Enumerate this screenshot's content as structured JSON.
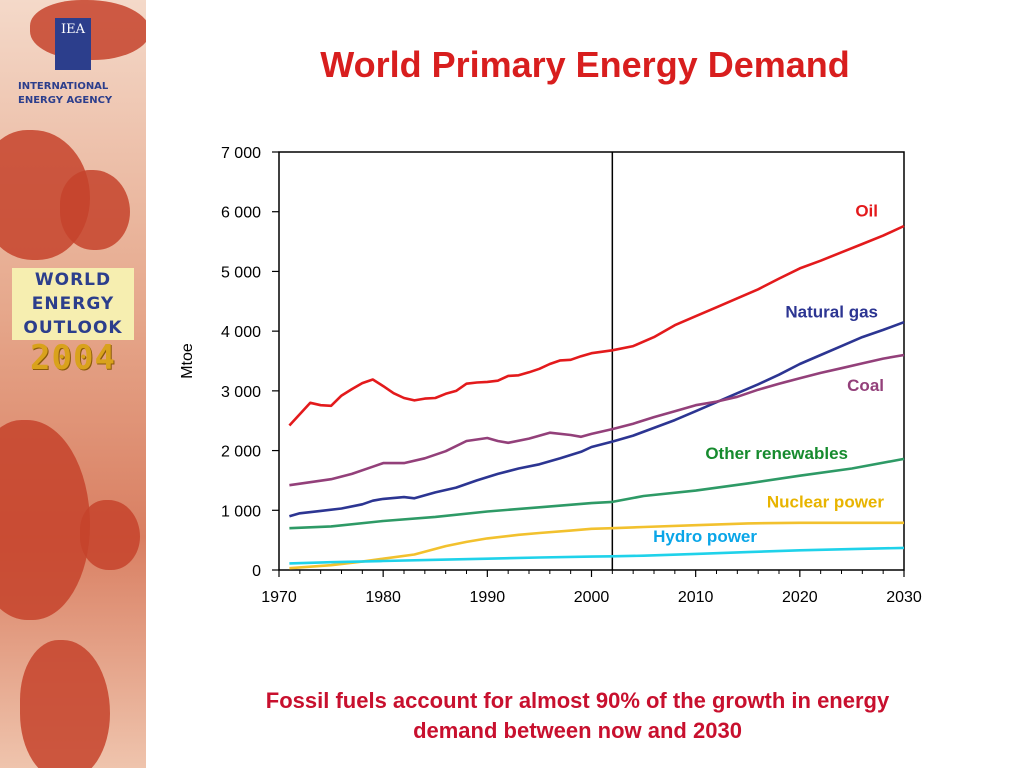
{
  "sidebar": {
    "logo_text": "IEA",
    "agency_line1": "INTERNATIONAL",
    "agency_line2": "ENERGY AGENCY",
    "badge": {
      "line1": "WORLD",
      "line2": "ENERGY",
      "line3": "OUTLOOK",
      "line4": "2004"
    }
  },
  "slide": {
    "title": "World Primary Energy Demand",
    "footnote_line1": "Fossil fuels account for almost 90% of the growth in energy",
    "footnote_line2": "demand between now and 2030"
  },
  "colors": {
    "title": "#d81e1e",
    "footnote": "#c8102e",
    "oil": "#e31a1c",
    "natural_gas": "#2c3592",
    "coal": "#93407a",
    "other_renewables": "#2e9a66",
    "nuclear": "#f2c12e",
    "hydro": "#1fd2ea",
    "label_other_renewables": "#168b2e",
    "label_nuclear": "#e8b400",
    "label_hydro": "#0aa6e8"
  },
  "chart_data": {
    "type": "line",
    "ylabel": "Mtoe",
    "xlabel": "",
    "xlim": [
      1970,
      2030
    ],
    "ylim": [
      0,
      7000
    ],
    "x_ticks": [
      1970,
      1980,
      1990,
      2000,
      2010,
      2020,
      2030
    ],
    "x_tick_labels": [
      "1970",
      "1980",
      "1990",
      "2000",
      "2010",
      "2020",
      "2030"
    ],
    "y_ticks": [
      0,
      1000,
      2000,
      3000,
      4000,
      5000,
      6000,
      7000
    ],
    "y_tick_labels": [
      "0",
      "1 000",
      "2 000",
      "3 000",
      "4 000",
      "5 000",
      "6 000",
      "7 000"
    ],
    "divider_x": 2002,
    "grid": false,
    "series": [
      {
        "name": "Oil",
        "color_key": "oil",
        "label_color_key": "oil",
        "points": [
          [
            1971,
            2420
          ],
          [
            1973,
            2800
          ],
          [
            1974,
            2760
          ],
          [
            1975,
            2750
          ],
          [
            1976,
            2920
          ],
          [
            1977,
            3030
          ],
          [
            1978,
            3130
          ],
          [
            1979,
            3190
          ],
          [
            1980,
            3080
          ],
          [
            1981,
            2960
          ],
          [
            1982,
            2880
          ],
          [
            1983,
            2840
          ],
          [
            1984,
            2870
          ],
          [
            1985,
            2880
          ],
          [
            1986,
            2950
          ],
          [
            1987,
            3000
          ],
          [
            1988,
            3120
          ],
          [
            1989,
            3140
          ],
          [
            1990,
            3150
          ],
          [
            1991,
            3170
          ],
          [
            1992,
            3250
          ],
          [
            1993,
            3260
          ],
          [
            1994,
            3310
          ],
          [
            1995,
            3370
          ],
          [
            1996,
            3450
          ],
          [
            1997,
            3510
          ],
          [
            1998,
            3520
          ],
          [
            1999,
            3580
          ],
          [
            2000,
            3630
          ],
          [
            2002,
            3680
          ],
          [
            2004,
            3750
          ],
          [
            2006,
            3900
          ],
          [
            2008,
            4100
          ],
          [
            2010,
            4250
          ],
          [
            2012,
            4400
          ],
          [
            2014,
            4550
          ],
          [
            2016,
            4700
          ],
          [
            2018,
            4880
          ],
          [
            2020,
            5050
          ],
          [
            2022,
            5180
          ],
          [
            2024,
            5320
          ],
          [
            2026,
            5460
          ],
          [
            2028,
            5600
          ],
          [
            2030,
            5760
          ]
        ]
      },
      {
        "name": "Natural gas",
        "color_key": "natural_gas",
        "label_color_key": "natural_gas",
        "points": [
          [
            1971,
            900
          ],
          [
            1972,
            950
          ],
          [
            1974,
            990
          ],
          [
            1976,
            1030
          ],
          [
            1978,
            1100
          ],
          [
            1979,
            1160
          ],
          [
            1980,
            1190
          ],
          [
            1982,
            1220
          ],
          [
            1983,
            1200
          ],
          [
            1985,
            1300
          ],
          [
            1987,
            1380
          ],
          [
            1989,
            1500
          ],
          [
            1991,
            1610
          ],
          [
            1993,
            1700
          ],
          [
            1995,
            1770
          ],
          [
            1997,
            1870
          ],
          [
            1999,
            1980
          ],
          [
            2000,
            2060
          ],
          [
            2002,
            2150
          ],
          [
            2004,
            2250
          ],
          [
            2006,
            2380
          ],
          [
            2008,
            2510
          ],
          [
            2010,
            2660
          ],
          [
            2012,
            2810
          ],
          [
            2014,
            2960
          ],
          [
            2016,
            3110
          ],
          [
            2018,
            3270
          ],
          [
            2020,
            3450
          ],
          [
            2022,
            3600
          ],
          [
            2024,
            3750
          ],
          [
            2026,
            3900
          ],
          [
            2028,
            4020
          ],
          [
            2030,
            4150
          ]
        ]
      },
      {
        "name": "Coal",
        "color_key": "coal",
        "label_color_key": "coal",
        "points": [
          [
            1971,
            1420
          ],
          [
            1973,
            1470
          ],
          [
            1975,
            1520
          ],
          [
            1977,
            1610
          ],
          [
            1979,
            1730
          ],
          [
            1980,
            1790
          ],
          [
            1982,
            1790
          ],
          [
            1984,
            1870
          ],
          [
            1986,
            1990
          ],
          [
            1988,
            2160
          ],
          [
            1990,
            2210
          ],
          [
            1991,
            2160
          ],
          [
            1992,
            2130
          ],
          [
            1994,
            2200
          ],
          [
            1996,
            2300
          ],
          [
            1998,
            2260
          ],
          [
            1999,
            2230
          ],
          [
            2000,
            2280
          ],
          [
            2002,
            2360
          ],
          [
            2004,
            2450
          ],
          [
            2006,
            2560
          ],
          [
            2008,
            2660
          ],
          [
            2010,
            2760
          ],
          [
            2012,
            2820
          ],
          [
            2014,
            2900
          ],
          [
            2016,
            3020
          ],
          [
            2018,
            3120
          ],
          [
            2020,
            3210
          ],
          [
            2022,
            3300
          ],
          [
            2024,
            3380
          ],
          [
            2026,
            3460
          ],
          [
            2028,
            3540
          ],
          [
            2030,
            3600
          ]
        ]
      },
      {
        "name": "Other renewables",
        "color_key": "other_renewables",
        "label_color_key": "label_other_renewables",
        "points": [
          [
            1971,
            700
          ],
          [
            1975,
            730
          ],
          [
            1980,
            820
          ],
          [
            1985,
            890
          ],
          [
            1990,
            980
          ],
          [
            1995,
            1050
          ],
          [
            2000,
            1120
          ],
          [
            2002,
            1140
          ],
          [
            2005,
            1240
          ],
          [
            2010,
            1330
          ],
          [
            2015,
            1450
          ],
          [
            2020,
            1580
          ],
          [
            2025,
            1700
          ],
          [
            2030,
            1860
          ]
        ]
      },
      {
        "name": "Nuclear power",
        "color_key": "nuclear",
        "label_color_key": "label_nuclear",
        "points": [
          [
            1971,
            30
          ],
          [
            1975,
            80
          ],
          [
            1978,
            140
          ],
          [
            1980,
            190
          ],
          [
            1983,
            260
          ],
          [
            1986,
            400
          ],
          [
            1988,
            470
          ],
          [
            1990,
            530
          ],
          [
            1993,
            590
          ],
          [
            1995,
            620
          ],
          [
            1998,
            660
          ],
          [
            2000,
            690
          ],
          [
            2002,
            700
          ],
          [
            2005,
            720
          ],
          [
            2010,
            750
          ],
          [
            2015,
            780
          ],
          [
            2020,
            790
          ],
          [
            2025,
            790
          ],
          [
            2030,
            790
          ]
        ]
      },
      {
        "name": "Hydro power",
        "color_key": "hydro",
        "label_color_key": "label_hydro",
        "points": [
          [
            1971,
            110
          ],
          [
            1975,
            130
          ],
          [
            1980,
            150
          ],
          [
            1985,
            170
          ],
          [
            1990,
            190
          ],
          [
            1995,
            210
          ],
          [
            2000,
            225
          ],
          [
            2002,
            230
          ],
          [
            2005,
            240
          ],
          [
            2010,
            270
          ],
          [
            2015,
            300
          ],
          [
            2020,
            330
          ],
          [
            2025,
            350
          ],
          [
            2030,
            370
          ]
        ]
      }
    ]
  }
}
